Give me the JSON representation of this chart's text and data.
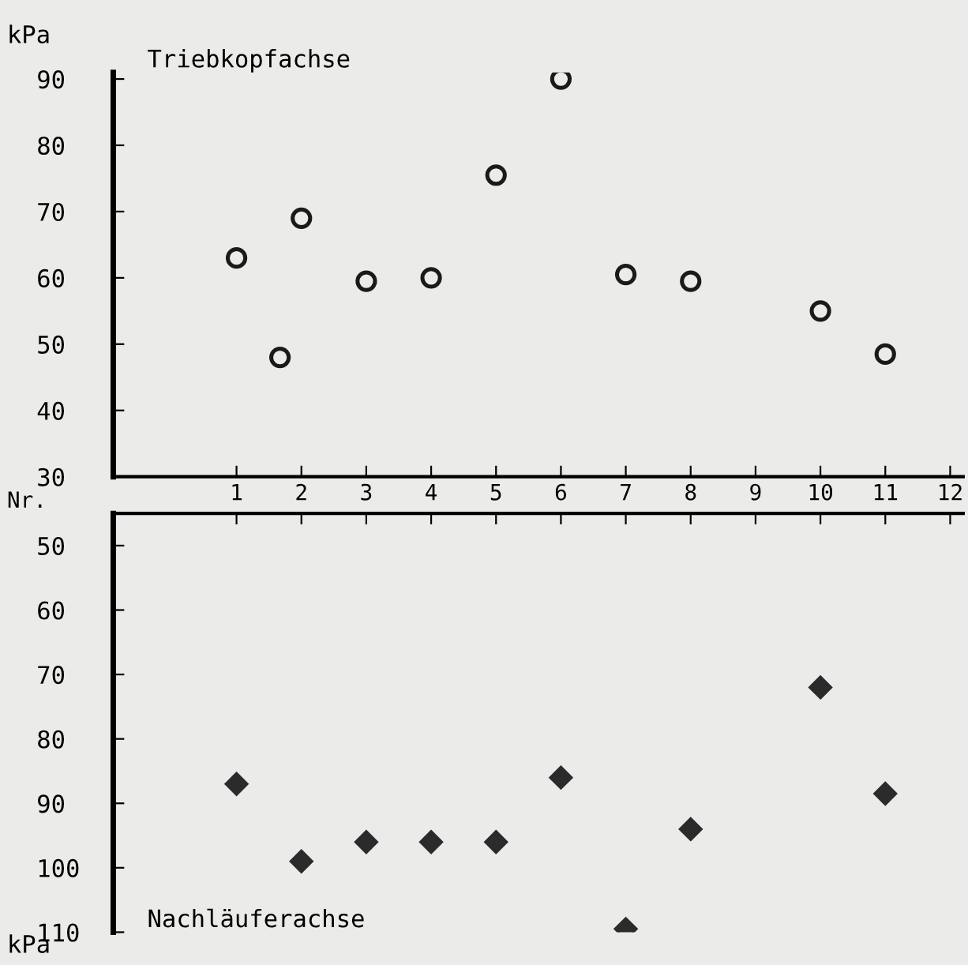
{
  "chart_data": [
    {
      "type": "scatter",
      "title": "Triebkopfachse",
      "xlabel": "Nr.",
      "ylabel": "kPa",
      "marker": "circle",
      "grid": false,
      "legend": false,
      "xlim": [
        -0.9,
        12.2
      ],
      "xticks": [
        1,
        2,
        3,
        4,
        5,
        6,
        7,
        8,
        9,
        10,
        11,
        12
      ],
      "ylim": [
        30,
        91
      ],
      "yticks": [
        30,
        40,
        50,
        60,
        70,
        80,
        90
      ],
      "series": [
        {
          "color": "#1a1a1a",
          "x": [
            1,
            1.67,
            2,
            3,
            4,
            5,
            6,
            7,
            8,
            10,
            11
          ],
          "values": [
            63,
            48,
            69,
            59.5,
            60,
            75.5,
            90,
            60.5,
            59.5,
            55,
            48.5
          ]
        }
      ]
    },
    {
      "type": "scatter",
      "title": "Nachläuferachse",
      "ylabel": "kPa",
      "marker": "diamond",
      "grid": false,
      "legend": false,
      "tick_labels": "y",
      "xlim": [
        -0.9,
        12.2
      ],
      "xticks": [
        1,
        2,
        3,
        4,
        5,
        6,
        7,
        8,
        9,
        10,
        11,
        12
      ],
      "ylim": [
        110,
        45
      ],
      "yticks": [
        50,
        60,
        70,
        80,
        90,
        100,
        110
      ],
      "series": [
        {
          "color": "#2b2b2b",
          "x": [
            1,
            2,
            3,
            4,
            5,
            6,
            7,
            8,
            10,
            11
          ],
          "values": [
            87,
            99,
            96,
            96,
            96,
            86,
            109.5,
            94,
            72,
            88.5
          ]
        }
      ]
    }
  ]
}
